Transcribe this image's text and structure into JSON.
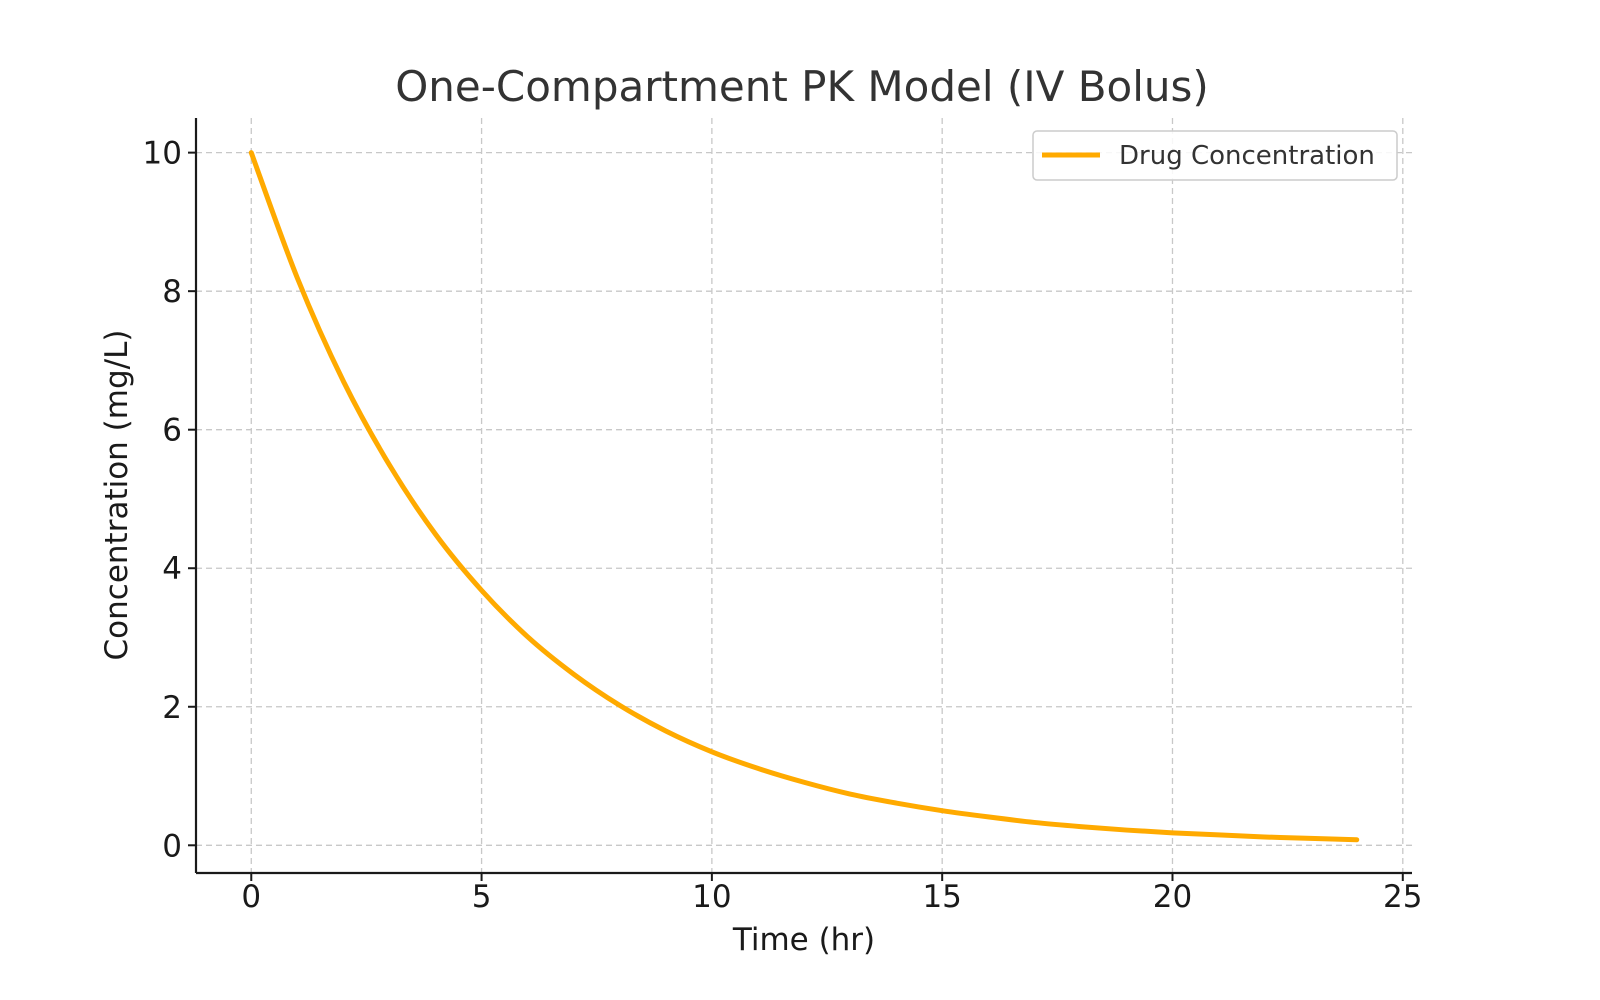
{
  "chart_data": {
    "type": "line",
    "title": "One-Compartment PK Model (IV Bolus)",
    "xlabel": "Time (hr)",
    "ylabel": "Concentration (mg/L)",
    "xlim": [
      -1.2,
      25.2
    ],
    "ylim": [
      -0.4,
      10.5
    ],
    "xticks": [
      0,
      5,
      10,
      15,
      20,
      25
    ],
    "yticks": [
      0,
      2,
      4,
      6,
      8,
      10
    ],
    "xtick_labels": [
      "0",
      "5",
      "10",
      "15",
      "20",
      "25"
    ],
    "ytick_labels": [
      "0",
      "2",
      "4",
      "6",
      "8",
      "10"
    ],
    "grid": true,
    "legend_position": "top-right",
    "series": [
      {
        "name": "Drug Concentration",
        "color": "#ffaa00",
        "x": [
          0,
          1,
          2,
          3,
          4,
          5,
          6,
          7,
          8,
          9,
          10,
          11,
          12,
          13,
          14,
          15,
          16,
          17,
          18,
          19,
          20,
          21,
          22,
          23,
          24
        ],
        "y": [
          10.0,
          8.19,
          6.7,
          5.49,
          4.49,
          3.68,
          3.01,
          2.47,
          2.02,
          1.65,
          1.35,
          1.11,
          0.91,
          0.74,
          0.61,
          0.5,
          0.41,
          0.33,
          0.27,
          0.22,
          0.18,
          0.15,
          0.12,
          0.1,
          0.08
        ]
      }
    ]
  }
}
